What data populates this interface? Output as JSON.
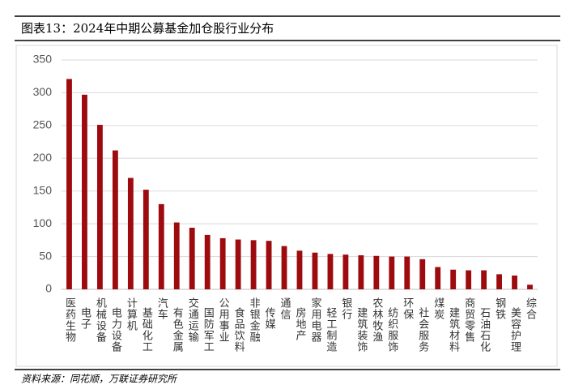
{
  "chart_data": {
    "type": "bar",
    "title": "图表13：2024年中期公募基金加仓股行业分布",
    "source": "资料来源：同花顺，万联证券研究所",
    "categories": [
      "医药生物",
      "电子",
      "机械设备",
      "电力设备",
      "计算机",
      "基础化工",
      "汽车",
      "有色金属",
      "交通运输",
      "国防军工",
      "公用事业",
      "食品饮料",
      "非银金融",
      "传媒",
      "通信",
      "房地产",
      "家用电器",
      "轻工制造",
      "银行",
      "建筑装饰",
      "农林牧渔",
      "纺织服饰",
      "环保",
      "社会服务",
      "煤炭",
      "建筑材料",
      "商贸零售",
      "石油石化",
      "钢铁",
      "美容护理",
      "综合"
    ],
    "values": [
      321,
      297,
      251,
      212,
      170,
      152,
      130,
      102,
      94,
      83,
      78,
      76,
      75,
      74,
      66,
      59,
      56,
      54,
      53,
      52,
      51,
      50,
      50,
      46,
      34,
      30,
      29,
      29,
      23,
      21,
      7
    ],
    "color": "#9e0b0f",
    "ylim": [
      0,
      350
    ],
    "yticks": [
      0,
      50,
      100,
      150,
      200,
      250,
      300,
      350
    ],
    "grid": true
  }
}
